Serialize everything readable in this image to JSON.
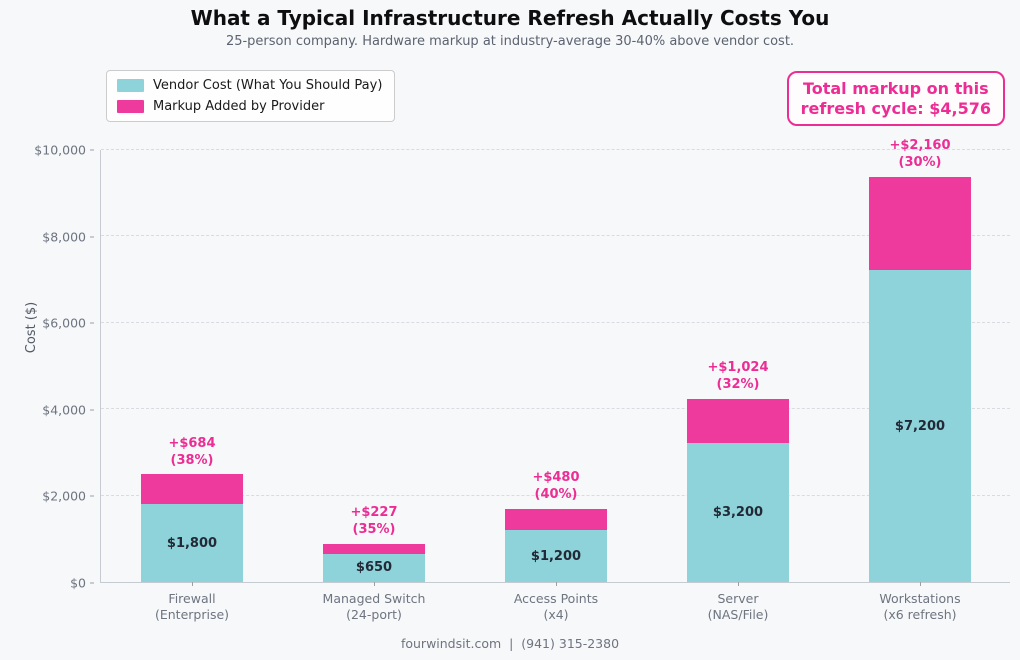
{
  "header": {
    "title": "What a Typical Infrastructure Refresh Actually Costs You",
    "subtitle": "25-person company. Hardware markup at industry-average 30-40% above vendor cost."
  },
  "legend": {
    "items": [
      {
        "label": "Vendor Cost (What You Should Pay)",
        "color": "#8ed3d9"
      },
      {
        "label": "Markup Added by Provider",
        "color": "#ee3a9c"
      }
    ]
  },
  "badge": {
    "line1": "Total markup on this",
    "line2": "refresh cycle: $4,576"
  },
  "footer": {
    "text": "fourwindsit.com  |  (941) 315-2380"
  },
  "colors": {
    "vendor": "#8ed3d9",
    "markup": "#ee3a9c",
    "accent_pink": "#ec2d94",
    "value_text": "#222937",
    "background": "#f7f8fa"
  },
  "chart_data": {
    "type": "bar",
    "stacked": true,
    "title": "What a Typical Infrastructure Refresh Actually Costs You",
    "subtitle": "25-person company. Hardware markup at industry-average 30-40% above vendor cost.",
    "xlabel": "",
    "ylabel": "Cost ($)",
    "ylim": [
      0,
      10000
    ],
    "grid": "horizontal-dashed",
    "legend_position": "upper-left",
    "categories": [
      {
        "line1": "Firewall",
        "line2": "(Enterprise)"
      },
      {
        "line1": "Managed Switch",
        "line2": "(24-port)"
      },
      {
        "line1": "Access Points",
        "line2": "(x4)"
      },
      {
        "line1": "Server",
        "line2": "(NAS/File)"
      },
      {
        "line1": "Workstations",
        "line2": "(x6 refresh)"
      }
    ],
    "series": [
      {
        "name": "Vendor Cost (What You Should Pay)",
        "color": "#8ed3d9",
        "values": [
          1800,
          650,
          1200,
          3200,
          7200
        ]
      },
      {
        "name": "Markup Added by Provider",
        "color": "#ee3a9c",
        "values": [
          684,
          227,
          480,
          1024,
          2160
        ]
      }
    ],
    "vendor_value_labels": [
      "$1,800",
      "$650",
      "$1,200",
      "$3,200",
      "$7,200"
    ],
    "annotations": [
      {
        "line1": "+$684",
        "line2": "(38%)"
      },
      {
        "line1": "+$227",
        "line2": "(35%)"
      },
      {
        "line1": "+$480",
        "line2": "(40%)"
      },
      {
        "line1": "+$1,024",
        "line2": "(32%)"
      },
      {
        "line1": "+$2,160",
        "line2": "(30%)"
      }
    ],
    "yticks": [
      {
        "value": 0,
        "label": "$0"
      },
      {
        "value": 2000,
        "label": "$2,000"
      },
      {
        "value": 4000,
        "label": "$4,000"
      },
      {
        "value": 6000,
        "label": "$6,000"
      },
      {
        "value": 8000,
        "label": "$8,000"
      },
      {
        "value": 10000,
        "label": "$10,000"
      }
    ],
    "total_markup": 4576
  }
}
